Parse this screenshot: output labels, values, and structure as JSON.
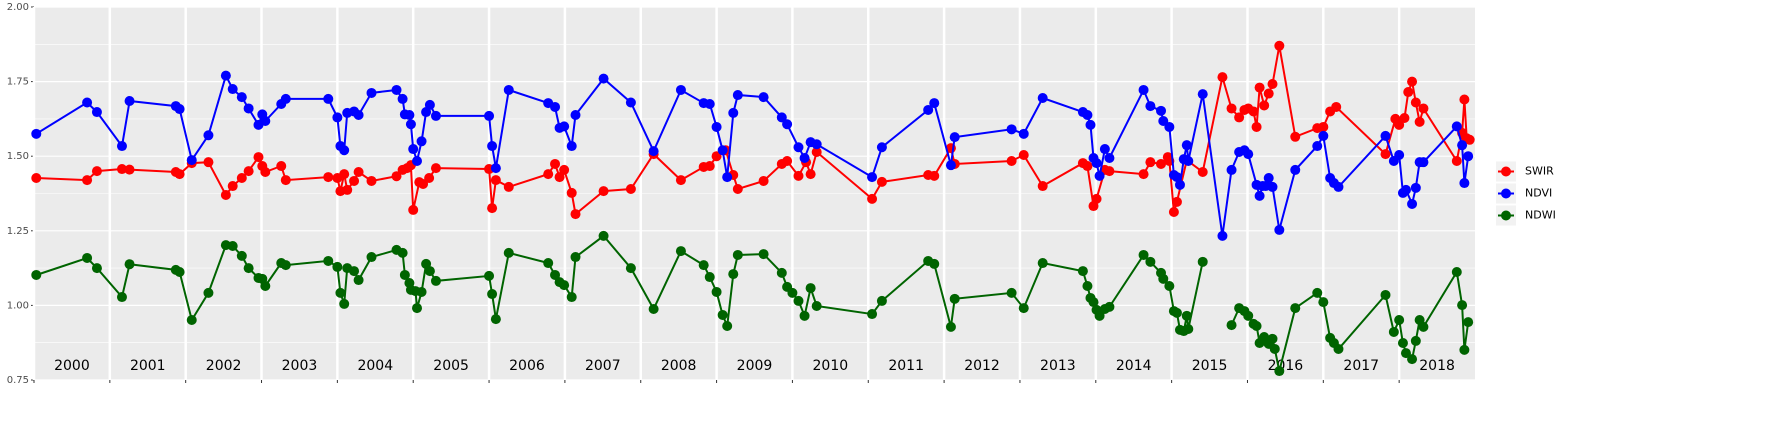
{
  "chart_data": {
    "type": "line",
    "xlim": [
      2000,
      2019
    ],
    "year_labels": [
      2000,
      2001,
      2002,
      2003,
      2004,
      2005,
      2006,
      2007,
      2008,
      2009,
      2010,
      2011,
      2012,
      2013,
      2014,
      2015,
      2016,
      2017,
      2018
    ],
    "ylim": [
      0.75,
      2.0
    ],
    "yticks": [
      0.75,
      {
        "value": 1.0,
        "label": "1.00"
      },
      1.25,
      {
        "value": 1.5,
        "label": "1.50"
      },
      1.75,
      {
        "value": 2.0,
        "label": "2.00"
      }
    ],
    "grid": true,
    "legend": "right",
    "series": [
      {
        "name": "SWIR",
        "color": "#ff0000",
        "x": [
          2000.03,
          2000.7,
          2000.83,
          2001.16,
          2001.26,
          2001.87,
          2001.92,
          2002.08,
          2002.3,
          2002.53,
          2002.62,
          2002.74,
          2002.83,
          2002.96,
          2003.01,
          2003.05,
          2003.26,
          2003.32,
          2003.88,
          2004.0,
          2004.04,
          2004.09,
          2004.13,
          2004.22,
          2004.28,
          2004.45,
          2004.78,
          2004.86,
          2004.92,
          2004.97,
          2005.0,
          2005.08,
          2005.13,
          2005.21,
          2005.3,
          2006.0,
          2006.04,
          2006.09,
          2006.26,
          2006.78,
          2006.87,
          2006.93,
          2006.99,
          2007.09,
          2007.14,
          2007.51,
          2007.87,
          2008.17,
          2008.53,
          2008.83,
          2008.91,
          2009.0,
          2009.12,
          2009.22,
          2009.28,
          2009.62,
          2009.86,
          2009.93,
          2010.08,
          2010.18,
          2010.24,
          2010.32,
          2011.05,
          2011.18,
          2011.79,
          2011.87,
          2012.09,
          2012.14,
          2012.89,
          2013.05,
          2013.3,
          2013.83,
          2013.89,
          2013.97,
          2014.01,
          2014.12,
          2014.18,
          2014.63,
          2014.72,
          2014.86,
          2014.95,
          2014.97,
          2015.03,
          2015.07,
          2015.2,
          2015.41,
          2015.67,
          2015.79,
          2015.89,
          2015.96,
          2016.01,
          2016.08,
          2016.12,
          2016.16,
          2016.22,
          2016.28,
          2016.33,
          2016.42,
          2016.63,
          2016.92,
          2017.0,
          2017.09,
          2017.17,
          2017.82,
          2017.95,
          2018.0,
          2018.07,
          2018.12,
          2018.17,
          2018.22,
          2018.27,
          2018.32,
          2018.76,
          2018.83,
          2018.86,
          2018.89,
          2018.93
        ],
        "values": [
          1.427,
          1.42,
          1.45,
          1.457,
          1.455,
          1.447,
          1.44,
          1.477,
          1.48,
          1.37,
          1.4,
          1.427,
          1.45,
          1.497,
          1.467,
          1.447,
          1.467,
          1.42,
          1.43,
          1.427,
          1.383,
          1.44,
          1.387,
          1.417,
          1.447,
          1.417,
          1.433,
          1.454,
          1.46,
          1.47,
          1.32,
          1.413,
          1.407,
          1.427,
          1.46,
          1.457,
          1.326,
          1.42,
          1.397,
          1.44,
          1.474,
          1.43,
          1.454,
          1.377,
          1.306,
          1.383,
          1.39,
          1.507,
          1.42,
          1.464,
          1.467,
          1.5,
          1.52,
          1.437,
          1.39,
          1.417,
          1.474,
          1.484,
          1.434,
          1.48,
          1.44,
          1.514,
          1.357,
          1.414,
          1.437,
          1.434,
          1.527,
          1.474,
          1.484,
          1.504,
          1.4,
          1.477,
          1.467,
          1.333,
          1.357,
          1.454,
          1.45,
          1.44,
          1.48,
          1.474,
          1.497,
          1.484,
          1.313,
          1.347,
          1.487,
          1.447,
          1.765,
          1.66,
          1.63,
          1.655,
          1.66,
          1.65,
          1.598,
          1.73,
          1.67,
          1.71,
          1.742,
          1.87,
          1.565,
          1.594,
          1.598,
          1.65,
          1.665,
          1.507,
          1.625,
          1.605,
          1.628,
          1.715,
          1.75,
          1.68,
          1.615,
          1.66,
          1.484,
          1.578,
          1.69,
          1.56,
          1.555
        ]
      },
      {
        "name": "NDVI",
        "color": "#0000ff",
        "x": [
          2000.03,
          2000.7,
          2000.83,
          2001.16,
          2001.26,
          2001.87,
          2001.92,
          2002.08,
          2002.3,
          2002.53,
          2002.62,
          2002.74,
          2002.83,
          2002.96,
          2003.01,
          2003.05,
          2003.26,
          2003.32,
          2003.88,
          2004.0,
          2004.04,
          2004.09,
          2004.13,
          2004.22,
          2004.28,
          2004.45,
          2004.78,
          2004.86,
          2004.89,
          2004.95,
          2004.97,
          2005.0,
          2005.05,
          2005.11,
          2005.17,
          2005.22,
          2005.3,
          2006.0,
          2006.04,
          2006.09,
          2006.26,
          2006.78,
          2006.87,
          2006.93,
          2006.99,
          2007.09,
          2007.14,
          2007.51,
          2007.87,
          2008.17,
          2008.53,
          2008.83,
          2008.91,
          2009.0,
          2009.08,
          2009.14,
          2009.22,
          2009.28,
          2009.62,
          2009.86,
          2009.93,
          2010.08,
          2010.16,
          2010.24,
          2010.32,
          2011.05,
          2011.18,
          2011.79,
          2011.87,
          2012.09,
          2012.14,
          2012.89,
          2013.05,
          2013.3,
          2013.83,
          2013.89,
          2013.93,
          2013.97,
          2014.01,
          2014.05,
          2014.12,
          2014.18,
          2014.63,
          2014.72,
          2014.86,
          2014.89,
          2014.97,
          2015.03,
          2015.07,
          2015.11,
          2015.16,
          2015.2,
          2015.22,
          2015.41,
          2015.67,
          2015.79,
          2015.89,
          2015.96,
          2016.01,
          2016.12,
          2016.16,
          2016.2,
          2016.24,
          2016.28,
          2016.33,
          2016.42,
          2016.63,
          2016.92,
          2017.0,
          2017.09,
          2017.14,
          2017.2,
          2017.82,
          2017.93,
          2018.0,
          2018.05,
          2018.09,
          2018.17,
          2018.22,
          2018.27,
          2018.32,
          2018.76,
          2018.83,
          2018.86,
          2018.91
        ],
        "values": [
          1.575,
          1.68,
          1.648,
          1.534,
          1.685,
          1.668,
          1.658,
          1.487,
          1.57,
          1.77,
          1.725,
          1.698,
          1.66,
          1.605,
          1.64,
          1.618,
          1.675,
          1.692,
          1.692,
          1.63,
          1.534,
          1.52,
          1.645,
          1.65,
          1.638,
          1.712,
          1.722,
          1.692,
          1.64,
          1.638,
          1.607,
          1.524,
          1.484,
          1.55,
          1.648,
          1.672,
          1.635,
          1.635,
          1.534,
          1.46,
          1.722,
          1.678,
          1.665,
          1.595,
          1.6,
          1.534,
          1.638,
          1.76,
          1.68,
          1.517,
          1.722,
          1.678,
          1.675,
          1.598,
          1.52,
          1.43,
          1.645,
          1.705,
          1.698,
          1.63,
          1.607,
          1.53,
          1.494,
          1.547,
          1.54,
          1.43,
          1.53,
          1.655,
          1.678,
          1.47,
          1.564,
          1.59,
          1.575,
          1.695,
          1.648,
          1.638,
          1.605,
          1.494,
          1.477,
          1.434,
          1.524,
          1.494,
          1.722,
          1.668,
          1.652,
          1.618,
          1.598,
          1.437,
          1.43,
          1.404,
          1.49,
          1.537,
          1.484,
          1.708,
          1.233,
          1.454,
          1.514,
          1.52,
          1.507,
          1.404,
          1.367,
          1.4,
          1.4,
          1.427,
          1.397,
          1.253,
          1.454,
          1.534,
          1.568,
          1.427,
          1.41,
          1.397,
          1.568,
          1.484,
          1.504,
          1.377,
          1.387,
          1.34,
          1.394,
          1.48,
          1.48,
          1.6,
          1.537,
          1.41,
          1.5
        ]
      },
      {
        "name": "NDWI",
        "color": "#006400",
        "x": [
          2000.03,
          2000.7,
          2000.83,
          2001.16,
          2001.26,
          2001.87,
          2001.92,
          2002.08,
          2002.3,
          2002.53,
          2002.62,
          2002.74,
          2002.83,
          2002.96,
          2003.01,
          2003.05,
          2003.26,
          2003.32,
          2003.88,
          2004.0,
          2004.04,
          2004.09,
          2004.13,
          2004.22,
          2004.28,
          2004.45,
          2004.78,
          2004.86,
          2004.89,
          2004.95,
          2004.97,
          2005.03,
          2005.05,
          2005.11,
          2005.17,
          2005.22,
          2005.3,
          2006.0,
          2006.04,
          2006.09,
          2006.26,
          2006.78,
          2006.87,
          2006.93,
          2006.99,
          2007.09,
          2007.14,
          2007.51,
          2007.87,
          2008.17,
          2008.53,
          2008.83,
          2008.91,
          2009.0,
          2009.08,
          2009.14,
          2009.22,
          2009.28,
          2009.62,
          2009.86,
          2009.93,
          2010.0,
          2010.08,
          2010.16,
          2010.24,
          2010.32,
          2011.05,
          2011.18,
          2011.79,
          2011.87,
          2012.09,
          2012.14,
          2012.89,
          2013.05,
          2013.3,
          2013.83,
          2013.89,
          2013.93,
          2013.97,
          2014.01,
          2014.05,
          2014.12,
          2014.18,
          2014.63,
          2014.72,
          2014.86,
          2014.89,
          2014.97,
          2015.03,
          2015.07,
          2015.11,
          2015.16,
          2015.2,
          2015.22,
          2015.41,
          null,
          2015.79,
          2015.89,
          2015.96,
          2016.01,
          2016.08,
          2016.12,
          2016.16,
          2016.22,
          2016.28,
          2016.33,
          2016.36,
          2016.42,
          2016.63,
          2016.92,
          2017.0,
          2017.09,
          2017.14,
          2017.2,
          2017.82,
          2017.93,
          2018.0,
          2018.05,
          2018.09,
          2018.17,
          2018.22,
          2018.27,
          2018.32,
          2018.76,
          2018.83,
          2018.86,
          2018.91
        ],
        "values": [
          1.102,
          1.159,
          1.125,
          1.028,
          1.138,
          1.119,
          1.112,
          0.951,
          1.042,
          1.202,
          1.199,
          1.166,
          1.125,
          1.092,
          1.089,
          1.065,
          1.142,
          1.135,
          1.149,
          1.129,
          1.042,
          1.005,
          1.125,
          1.115,
          1.085,
          1.162,
          1.186,
          1.176,
          1.102,
          1.075,
          1.052,
          1.048,
          0.991,
          1.045,
          1.139,
          1.115,
          1.082,
          1.099,
          1.038,
          0.954,
          1.176,
          1.142,
          1.102,
          1.078,
          1.068,
          1.028,
          1.162,
          1.233,
          1.125,
          0.988,
          1.182,
          1.135,
          1.095,
          1.045,
          0.968,
          0.931,
          1.105,
          1.169,
          1.172,
          1.109,
          1.062,
          1.042,
          1.015,
          0.965,
          1.058,
          0.998,
          0.971,
          1.015,
          1.149,
          1.139,
          0.928,
          1.022,
          1.042,
          0.991,
          1.142,
          1.115,
          1.065,
          1.025,
          1.011,
          0.985,
          0.965,
          0.988,
          0.995,
          1.169,
          1.146,
          1.109,
          1.089,
          1.065,
          0.981,
          0.975,
          0.918,
          0.914,
          0.965,
          0.921,
          1.146,
          null,
          0.934,
          0.991,
          0.981,
          0.965,
          0.938,
          0.931,
          0.874,
          0.894,
          0.871,
          0.888,
          0.854,
          0.78,
          0.991,
          1.042,
          1.011,
          0.891,
          0.874,
          0.854,
          1.035,
          0.911,
          0.951,
          0.874,
          0.84,
          0.82,
          0.881,
          0.951,
          0.928,
          1.112,
          1.001,
          0.851,
          0.944
        ]
      }
    ]
  }
}
